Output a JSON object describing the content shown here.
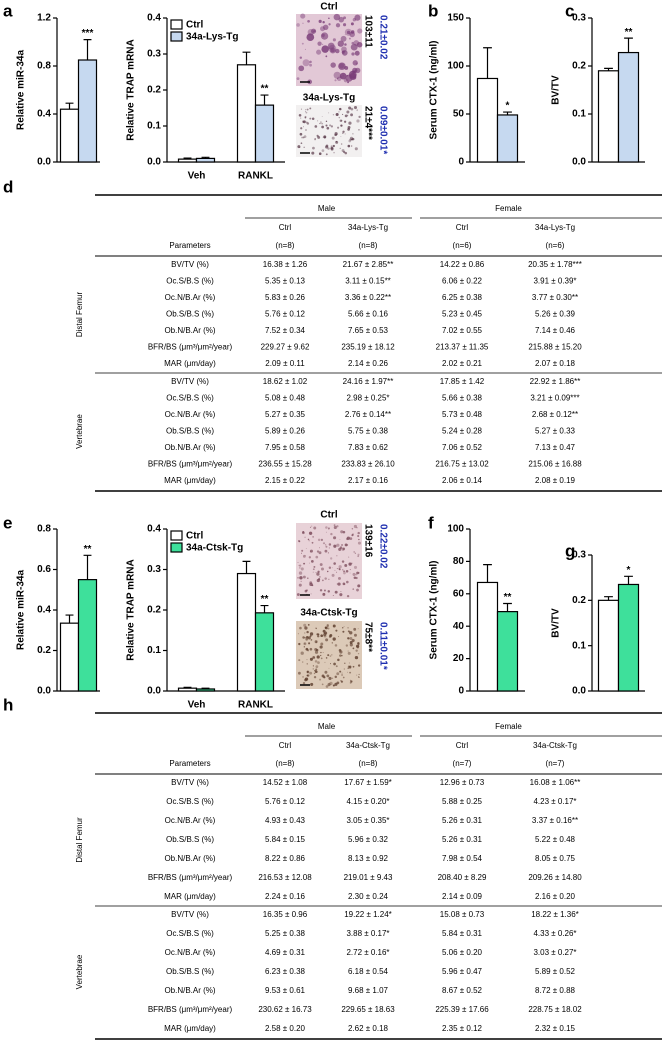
{
  "panels": [
    "a",
    "b",
    "c",
    "d",
    "e",
    "f",
    "g",
    "h"
  ],
  "chart_data": [
    {
      "type": "bar",
      "ylabel": "Relative miR-34a",
      "categories": [
        null
      ],
      "ylim": [
        0,
        1.2
      ],
      "yticks": [
        {
          "value": 0,
          "label": "0.0"
        },
        0.4,
        0.8,
        1.2
      ],
      "series": [
        {
          "color": "#ffffff",
          "values": [
            0.44
          ],
          "errors": [
            0.05
          ]
        },
        {
          "color": "#c6d9f0",
          "values": [
            0.85
          ],
          "errors": [
            0.17
          ],
          "annotations": [
            "***"
          ]
        }
      ]
    },
    {
      "type": "bar",
      "ylabel": "Relative TRAP mRNA",
      "categories": [
        "Veh",
        "RANKL"
      ],
      "ylim": [
        0,
        0.4
      ],
      "yticks": [
        {
          "value": 0,
          "label": "0.0"
        },
        0.1,
        0.2,
        0.3,
        0.4
      ],
      "legend": "upper left",
      "series": [
        {
          "name": "Ctrl",
          "color": "#ffffff",
          "values": [
            0.008,
            0.27
          ],
          "errors": [
            0.003,
            0.035
          ]
        },
        {
          "name": "34a-Lys-Tg",
          "color": "#c6d9f0",
          "values": [
            0.01,
            0.158
          ],
          "errors": [
            0.003,
            0.028
          ],
          "annotations": [
            null,
            "**"
          ]
        }
      ]
    },
    {
      "type": "bar",
      "ylabel": "Serum CTX-1 (ng/ml)",
      "categories": [
        null
      ],
      "ylim": [
        0,
        150
      ],
      "yticks": [
        0,
        50,
        100,
        150
      ],
      "series": [
        {
          "color": "#ffffff",
          "values": [
            87
          ],
          "errors": [
            32
          ]
        },
        {
          "color": "#c6d9f0",
          "values": [
            49
          ],
          "errors": [
            3
          ],
          "annotations": [
            "*"
          ]
        }
      ]
    },
    {
      "type": "bar",
      "ylabel": "BV/TV",
      "categories": [
        null
      ],
      "ylim": [
        0,
        0.3
      ],
      "yticks": [
        {
          "value": 0,
          "label": "0.0"
        },
        0.1,
        0.2,
        0.3
      ],
      "series": [
        {
          "color": "#ffffff",
          "values": [
            0.19
          ],
          "errors": [
            0.005
          ]
        },
        {
          "color": "#c6d9f0",
          "values": [
            0.228
          ],
          "errors": [
            0.03
          ],
          "annotations": [
            "**"
          ]
        }
      ]
    },
    {
      "type": "bar",
      "ylabel": "Relative miR-34a",
      "categories": [
        null
      ],
      "ylim": [
        0,
        0.8
      ],
      "yticks": [
        {
          "value": 0,
          "label": "0.0"
        },
        0.2,
        0.4,
        0.6,
        0.8
      ],
      "series": [
        {
          "color": "#ffffff",
          "values": [
            0.335
          ],
          "errors": [
            0.04
          ]
        },
        {
          "color": "#3ee09b",
          "values": [
            0.55
          ],
          "errors": [
            0.12
          ],
          "annotations": [
            "**"
          ]
        }
      ]
    },
    {
      "type": "bar",
      "ylabel": "Relative TRAP mRNA",
      "categories": [
        "Veh",
        "RANKL"
      ],
      "ylim": [
        0,
        0.4
      ],
      "yticks": [
        {
          "value": 0,
          "label": "0.0"
        },
        0.1,
        0.2,
        0.3,
        0.4
      ],
      "legend": "upper left",
      "series": [
        {
          "name": "Ctrl",
          "color": "#ffffff",
          "values": [
            0.007,
            0.29
          ],
          "errors": [
            0.002,
            0.03
          ]
        },
        {
          "name": "34a-Ctsk-Tg",
          "color": "#3ee09b",
          "values": [
            0.005,
            0.193
          ],
          "errors": [
            0.002,
            0.018
          ],
          "annotations": [
            null,
            "**"
          ]
        }
      ]
    },
    {
      "type": "bar",
      "ylabel": "Serum CTX-1 (ng/ml)",
      "categories": [
        null
      ],
      "ylim": [
        0,
        100
      ],
      "yticks": [
        0,
        20,
        40,
        60,
        80,
        100
      ],
      "series": [
        {
          "color": "#ffffff",
          "values": [
            67
          ],
          "errors": [
            11
          ]
        },
        {
          "color": "#3ee09b",
          "values": [
            49
          ],
          "errors": [
            5
          ],
          "annotations": [
            "**"
          ]
        }
      ]
    },
    {
      "type": "bar",
      "ylabel": "BV/TV",
      "categories": [
        null
      ],
      "ylim": [
        0,
        0.3
      ],
      "yticks": [
        {
          "value": 0,
          "label": "0.0"
        },
        0.1,
        0.2,
        0.3
      ],
      "series": [
        {
          "color": "#ffffff",
          "values": [
            0.2
          ],
          "errors": [
            0.008
          ]
        },
        {
          "color": "#3ee09b",
          "values": [
            0.235
          ],
          "errors": [
            0.018
          ],
          "annotations": [
            "*"
          ]
        }
      ]
    }
  ],
  "micrographs": [
    {
      "items": [
        {
          "label": "Ctrl",
          "stats": [
            "103±11",
            "0.21±0.02"
          ]
        },
        {
          "label": "34a-Lys-Tg",
          "stats": [
            "21±4***",
            "0.09±0.01*"
          ]
        }
      ]
    },
    {
      "items": [
        {
          "label": "Ctrl",
          "stats": [
            "139±16",
            "0.22±0.02"
          ]
        },
        {
          "label": "34a-Ctsk-Tg",
          "stats": [
            "75±8**",
            "0.11±0.01*"
          ]
        }
      ]
    }
  ],
  "tables": [
    {
      "groups": [
        "Male",
        "Female"
      ],
      "columns": [
        "Ctrl",
        "34a-Lys-Tg",
        "Ctrl",
        "34a-Lys-Tg"
      ],
      "n": [
        "(n=8)",
        "(n=8)",
        "(n=6)",
        "(n=6)"
      ],
      "parameters_label": "Parameters",
      "sections": [
        {
          "name": "Distal Femur",
          "rows": [
            {
              "parameter": "BV/TV (%)",
              "values": [
                "16.38 ± 1.26",
                "21.67 ± 2.85**",
                "14.22 ± 0.86",
                "20.35 ± 1.78***"
              ]
            },
            {
              "parameter": "Oc.S/B.S (%)",
              "values": [
                "5.35 ± 0.13",
                "3.11 ± 0.15**",
                "6.06 ± 0.22",
                "3.91 ± 0.39*"
              ]
            },
            {
              "parameter": "Oc.N/B.Ar (%)",
              "values": [
                "5.83 ± 0.26",
                "3.36 ± 0.22**",
                "6.25 ± 0.38",
                "3.77 ± 0.30**"
              ]
            },
            {
              "parameter": "Ob.S/B.S (%)",
              "values": [
                "5.76 ± 0.12",
                "5.66 ± 0.16",
                "5.23 ± 0.45",
                "5.26 ± 0.39"
              ]
            },
            {
              "parameter": "Ob.N/B.Ar (%)",
              "values": [
                "7.52 ± 0.34",
                "7.65 ± 0.53",
                "7.02 ± 0.55",
                "7.14 ± 0.46"
              ]
            },
            {
              "parameter": "BFR/BS (μm³/μm²/year)",
              "values": [
                "229.27 ± 9.62",
                "235.19 ± 18.12",
                "213.37 ± 11.35",
                "215.88 ± 15.20"
              ]
            },
            {
              "parameter": "MAR (μm/day)",
              "values": [
                "2.09 ± 0.11",
                "2.14 ± 0.26",
                "2.02 ± 0.21",
                "2.07 ± 0.18"
              ]
            }
          ]
        },
        {
          "name": "Vertebrae",
          "rows": [
            {
              "parameter": "BV/TV (%)",
              "values": [
                "18.62 ± 1.02",
                "24.16 ± 1.97**",
                "17.85 ± 1.42",
                "22.92 ± 1.86**"
              ]
            },
            {
              "parameter": "Oc.S/B.S (%)",
              "values": [
                "5.08 ± 0.48",
                "2.98 ± 0.25*",
                "5.66 ± 0.38",
                "3.21 ± 0.09***"
              ]
            },
            {
              "parameter": "Oc.N/B.Ar (%)",
              "values": [
                "5.27 ± 0.35",
                "2.76 ± 0.14**",
                "5.73 ± 0.48",
                "2.68 ± 0.12**"
              ]
            },
            {
              "parameter": "Ob.S/B.S (%)",
              "values": [
                "5.89 ± 0.26",
                "5.75 ± 0.38",
                "5.24 ± 0.28",
                "5.27 ± 0.33"
              ]
            },
            {
              "parameter": "Ob.N/B.Ar (%)",
              "values": [
                "7.95 ± 0.58",
                "7.83 ± 0.62",
                "7.06 ± 0.52",
                "7.13 ± 0.47"
              ]
            },
            {
              "parameter": "BFR/BS (μm³/μm²/year)",
              "values": [
                "236.55 ± 15.28",
                "233.83 ± 26.10",
                "216.75 ± 13.02",
                "215.06 ± 16.88"
              ]
            },
            {
              "parameter": "MAR (μm/day)",
              "values": [
                "2.15 ± 0.22",
                "2.17 ± 0.16",
                "2.06 ± 0.14",
                "2.08 ± 0.19"
              ]
            }
          ]
        }
      ]
    },
    {
      "groups": [
        "Male",
        "Female"
      ],
      "columns": [
        "Ctrl",
        "34a-Ctsk-Tg",
        "Ctrl",
        "34a-Ctsk-Tg"
      ],
      "n": [
        "(n=8)",
        "(n=8)",
        "(n=7)",
        "(n=7)"
      ],
      "parameters_label": "Parameters",
      "sections": [
        {
          "name": "Distal Femur",
          "rows": [
            {
              "parameter": "BV/TV (%)",
              "values": [
                "14.52 ± 1.08",
                "17.67 ± 1.59*",
                "12.96 ± 0.73",
                "16.08 ± 1.06**"
              ]
            },
            {
              "parameter": "Oc.S/B.S (%)",
              "values": [
                "5.76 ± 0.12",
                "4.15 ± 0.20*",
                "5.88 ± 0.25",
                "4.23 ± 0.17*"
              ]
            },
            {
              "parameter": "Oc.N/B.Ar (%)",
              "values": [
                "4.93 ± 0.43",
                "3.05 ± 0.35*",
                "5.26 ± 0.31",
                "3.37 ± 0.16**"
              ]
            },
            {
              "parameter": "Ob.S/B.S (%)",
              "values": [
                "5.84 ± 0.15",
                "5.96 ± 0.32",
                "5.26 ± 0.31",
                "5.22 ± 0.48"
              ]
            },
            {
              "parameter": "Ob.N/B.Ar (%)",
              "values": [
                "8.22 ± 0.86",
                "8.13 ± 0.92",
                "7.98 ± 0.54",
                "8.05 ± 0.75"
              ]
            },
            {
              "parameter": "BFR/BS (μm³/μm²/year)",
              "values": [
                "216.53 ± 12.08",
                "219.01 ± 9.43",
                "208.40 ± 8.29",
                "209.26 ± 14.80"
              ]
            },
            {
              "parameter": "MAR (μm/day)",
              "values": [
                "2.24 ± 0.16",
                "2.30 ± 0.24",
                "2.14 ± 0.09",
                "2.16 ± 0.20"
              ]
            }
          ]
        },
        {
          "name": "Vertebrae",
          "rows": [
            {
              "parameter": "BV/TV (%)",
              "values": [
                "16.35 ± 0.96",
                "19.22 ± 1.24*",
                "15.08 ± 0.73",
                "18.22 ± 1.36*"
              ]
            },
            {
              "parameter": "Oc.S/B.S (%)",
              "values": [
                "5.25 ± 0.38",
                "3.88 ± 0.17*",
                "5.84 ± 0.31",
                "4.33 ± 0.26*"
              ]
            },
            {
              "parameter": "Oc.N/B.Ar (%)",
              "values": [
                "4.69 ± 0.31",
                "2.72 ± 0.16*",
                "5.06 ± 0.20",
                "3.03 ± 0.27*"
              ]
            },
            {
              "parameter": "Ob.S/B.S (%)",
              "values": [
                "6.23 ± 0.38",
                "6.18 ± 0.54",
                "5.96 ± 0.47",
                "5.89 ± 0.52"
              ]
            },
            {
              "parameter": "Ob.N/B.Ar (%)",
              "values": [
                "9.53 ± 0.61",
                "9.68 ± 1.07",
                "8.67 ± 0.52",
                "8.72 ± 0.88"
              ]
            },
            {
              "parameter": "BFR/BS (μm³/μm²/year)",
              "values": [
                "230.62 ± 16.73",
                "229.65 ± 18.63",
                "225.39 ± 17.66",
                "228.75 ± 18.02"
              ]
            },
            {
              "parameter": "MAR (μm/day)",
              "values": [
                "2.58 ± 0.20",
                "2.62 ± 0.18",
                "2.35 ± 0.12",
                "2.32 ± 0.15"
              ]
            }
          ]
        }
      ]
    }
  ]
}
